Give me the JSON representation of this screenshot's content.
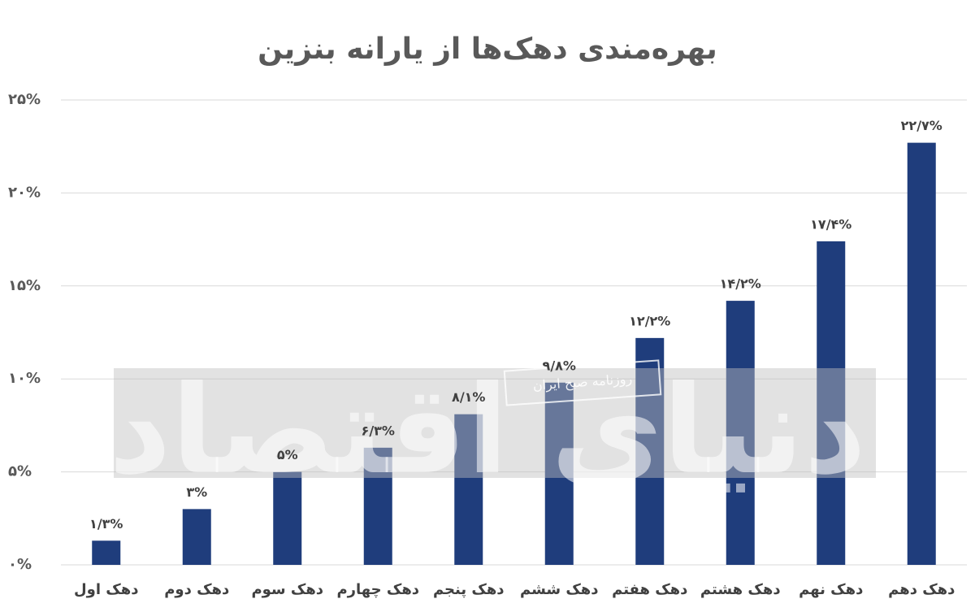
{
  "chart_data": {
    "type": "bar",
    "title": "بهره‌مندی دهک‌ها از یارانه بنزین",
    "categories": [
      "دهک اول",
      "دهک دوم",
      "دهک سوم",
      "دهک چهارم",
      "دهک پنجم",
      "دهک ششم",
      "دهک هفتم",
      "دهک هشتم",
      "دهک نهم",
      "دهک دهم"
    ],
    "values": [
      1.3,
      3,
      5,
      6.3,
      8.1,
      9.8,
      12.2,
      14.2,
      17.4,
      22.7
    ],
    "value_labels": [
      "۱/۳%",
      "۳%",
      "۵%",
      "۶/۳%",
      "۸/۱%",
      "۹/۸%",
      "۱۲/۲%",
      "۱۴/۲%",
      "۱۷/۴%",
      "۲۲/۷%"
    ],
    "color": "#1f3d7c",
    "ylim": [
      0,
      25
    ],
    "yticks": [
      {
        "value": 0,
        "label": "۰%"
      },
      {
        "value": 5,
        "label": "۵%"
      },
      {
        "value": 10,
        "label": "۱۰%"
      },
      {
        "value": 15,
        "label": "۱۵%"
      },
      {
        "value": 20,
        "label": "۲۰%"
      },
      {
        "value": 25,
        "label": "۲۵%"
      }
    ],
    "grid": true,
    "watermark": {
      "brand": "دنیای اقتصاد",
      "tagline": "روزنامه صبح ایران"
    }
  }
}
